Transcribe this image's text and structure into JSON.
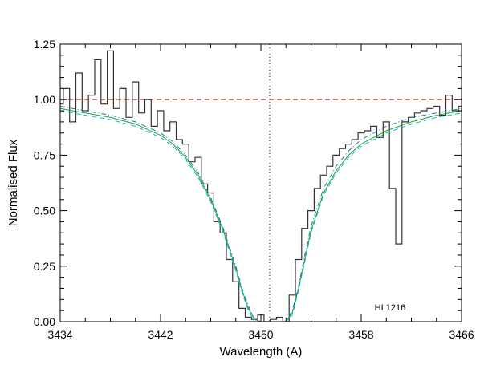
{
  "chart_data": {
    "type": "line",
    "title": "",
    "xlabel": "Wavelength (A)",
    "ylabel": "Normalised Flux",
    "xlim": [
      3434,
      3466
    ],
    "ylim": [
      0,
      1.25
    ],
    "xticks": [
      3434,
      3442,
      3450,
      3458,
      3466
    ],
    "xtick_labels": [
      "3434",
      "3442",
      "3450",
      "3458",
      "3466"
    ],
    "yticks": [
      0,
      0.25,
      0.5,
      0.75,
      1.0,
      1.25
    ],
    "ytick_labels": [
      "0.00",
      "0.25",
      "0.50",
      "0.75",
      "1.00",
      "1.25"
    ],
    "grid": false,
    "annotations": [
      {
        "text": "HI 1216",
        "x": 3460.3,
        "y": 0.05
      }
    ],
    "reference_lines": [
      {
        "orientation": "horizontal",
        "value": 1.0,
        "style": "dashed",
        "color": "#e8332a"
      },
      {
        "orientation": "vertical",
        "value": 3450.7,
        "style": "dotted",
        "color": "#000000"
      }
    ],
    "series": [
      {
        "color": "#333333",
        "style": "histogram-step",
        "x": [
          3434.0,
          3434.5,
          3435.0,
          3435.5,
          3436.0,
          3436.5,
          3437.0,
          3437.5,
          3438.0,
          3438.5,
          3439.0,
          3439.5,
          3440.0,
          3440.5,
          3441.0,
          3441.5,
          3442.0,
          3442.5,
          3443.0,
          3443.5,
          3444.0,
          3444.5,
          3445.0,
          3445.5,
          3446.0,
          3446.5,
          3447.0,
          3447.5,
          3448.0,
          3448.5,
          3449.0,
          3449.5,
          3450.0,
          3450.5,
          3451.0,
          3451.5,
          3452.0,
          3452.5,
          3453.0,
          3453.5,
          3454.0,
          3454.5,
          3455.0,
          3455.5,
          3456.0,
          3456.5,
          3457.0,
          3457.5,
          3458.0,
          3458.5,
          3459.0,
          3459.5,
          3460.0,
          3460.5,
          3461.0,
          3461.5,
          3462.0,
          3462.5,
          3463.0,
          3463.5,
          3464.0,
          3464.5,
          3465.0,
          3465.5,
          3466.0
        ],
        "y": [
          0.98,
          1.05,
          0.9,
          1.12,
          0.95,
          1.02,
          1.18,
          0.98,
          1.22,
          0.96,
          1.05,
          0.92,
          1.08,
          0.94,
          1.0,
          0.88,
          0.95,
          0.86,
          0.9,
          0.82,
          0.8,
          0.72,
          0.74,
          0.62,
          0.58,
          0.45,
          0.4,
          0.28,
          0.18,
          0.06,
          0.02,
          0.01,
          0.03,
          0.0,
          0.01,
          0.02,
          0.0,
          0.12,
          0.28,
          0.42,
          0.5,
          0.6,
          0.66,
          0.7,
          0.75,
          0.78,
          0.8,
          0.82,
          0.85,
          0.86,
          0.88,
          0.83,
          0.9,
          0.6,
          0.35,
          0.9,
          0.92,
          0.94,
          0.95,
          0.96,
          0.97,
          0.93,
          1.02,
          0.95,
          0.97
        ]
      },
      {
        "color": "#2ca02c",
        "style": "solid",
        "x": [
          3434,
          3436,
          3438,
          3440,
          3442,
          3443,
          3444,
          3445,
          3446,
          3447,
          3448,
          3448.5,
          3449,
          3449.5,
          3450,
          3451,
          3452,
          3452.5,
          3453,
          3453.5,
          3454,
          3455,
          3456,
          3457,
          3458,
          3460,
          3462,
          3464,
          3466
        ],
        "y": [
          0.96,
          0.94,
          0.92,
          0.89,
          0.84,
          0.8,
          0.74,
          0.66,
          0.55,
          0.41,
          0.24,
          0.14,
          0.06,
          0.01,
          0.0,
          0.0,
          0.0,
          0.04,
          0.15,
          0.28,
          0.41,
          0.58,
          0.68,
          0.75,
          0.8,
          0.86,
          0.9,
          0.93,
          0.95
        ]
      },
      {
        "color": "#1f77b4",
        "style": "dash-dot",
        "x": [
          3434,
          3436,
          3438,
          3440,
          3442,
          3443,
          3444,
          3445,
          3446,
          3447,
          3448,
          3448.5,
          3449,
          3449.5,
          3450,
          3451,
          3452,
          3452.5,
          3453,
          3453.5,
          3454,
          3455,
          3456,
          3457,
          3458,
          3460,
          3462,
          3464,
          3466
        ],
        "y": [
          0.97,
          0.95,
          0.93,
          0.9,
          0.85,
          0.81,
          0.75,
          0.67,
          0.56,
          0.42,
          0.25,
          0.15,
          0.07,
          0.01,
          0.0,
          0.0,
          0.0,
          0.05,
          0.16,
          0.3,
          0.43,
          0.6,
          0.7,
          0.77,
          0.82,
          0.88,
          0.92,
          0.94,
          0.96
        ]
      },
      {
        "color": "#00bcd4",
        "style": "dashed",
        "x": [
          3434,
          3436,
          3438,
          3440,
          3442,
          3443,
          3444,
          3445,
          3446,
          3447,
          3448,
          3448.5,
          3449,
          3449.5,
          3450,
          3451,
          3452,
          3452.5,
          3453,
          3453.5,
          3454,
          3455,
          3456,
          3457,
          3458,
          3460,
          3462,
          3464,
          3466
        ],
        "y": [
          0.95,
          0.93,
          0.91,
          0.88,
          0.83,
          0.79,
          0.73,
          0.65,
          0.54,
          0.4,
          0.23,
          0.13,
          0.05,
          0.0,
          0.0,
          0.0,
          0.0,
          0.03,
          0.14,
          0.27,
          0.4,
          0.57,
          0.67,
          0.74,
          0.79,
          0.85,
          0.89,
          0.92,
          0.94
        ]
      }
    ]
  }
}
